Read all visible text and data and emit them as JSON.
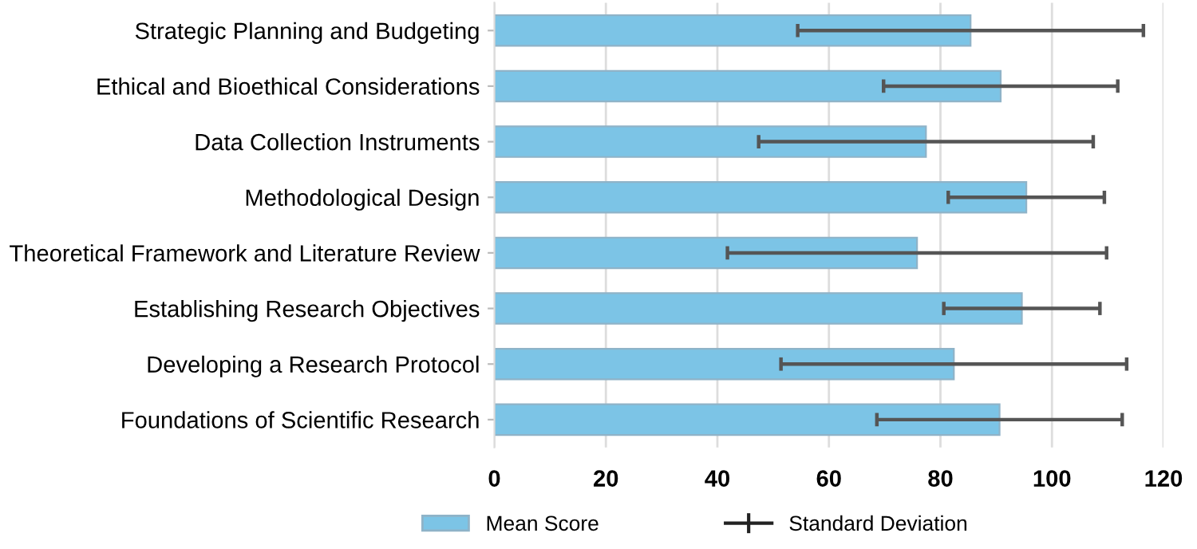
{
  "chart_data": {
    "type": "bar",
    "orientation": "horizontal",
    "categories": [
      "Strategic Planning and Budgeting",
      "Ethical and Bioethical Considerations",
      "Data Collection Instruments",
      "Methodological Design",
      "Theoretical Framework and Literature Review",
      "Establishing Research Objectives",
      "Developing a Research Protocol",
      "Foundations of Scientific Research"
    ],
    "series": [
      {
        "name": "Mean Score",
        "color": "#7cc4e6",
        "values": [
          85.4,
          90.8,
          77.4,
          95.4,
          75.8,
          94.6,
          82.4,
          90.6
        ],
        "errors": [
          31,
          21,
          30,
          14,
          34,
          14,
          31,
          22
        ]
      }
    ],
    "annotations": [
      "Standard Deviation"
    ],
    "xlim": [
      0,
      120
    ],
    "xticks": [
      0,
      20,
      40,
      60,
      80,
      100,
      120
    ],
    "grid": "x",
    "legend": "bottom"
  }
}
